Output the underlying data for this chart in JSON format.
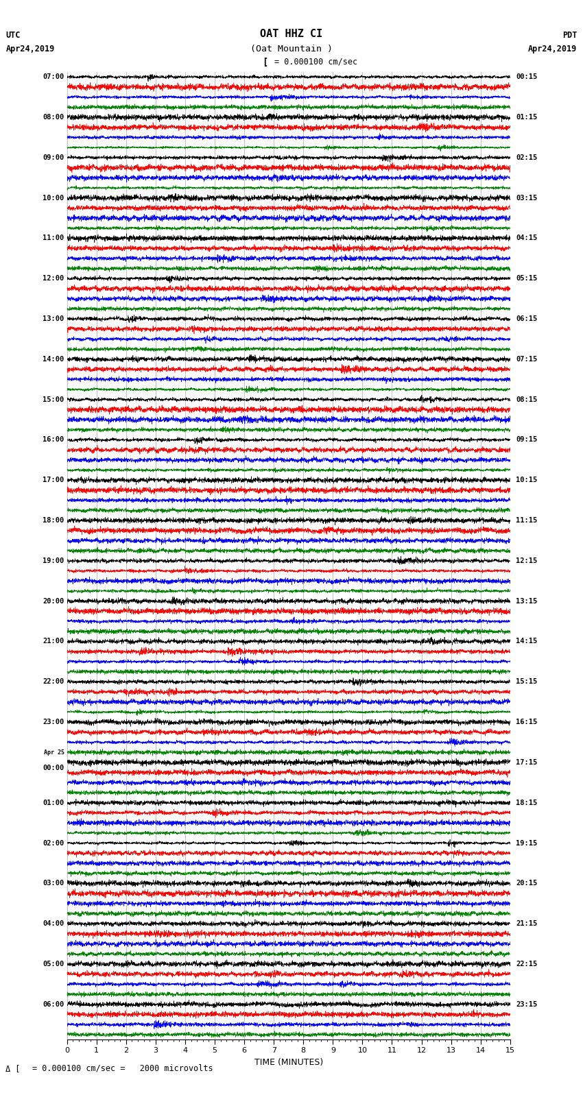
{
  "title_line1": "OAT HHZ CI",
  "title_line2": "(Oat Mountain )",
  "scale_text": "= 0.000100 cm/sec",
  "left_label_top": "UTC",
  "left_label_date": "Apr24,2019",
  "right_label_top": "PDT",
  "right_label_date": "Apr24,2019",
  "bottom_label": "TIME (MINUTES)",
  "footer_text": "= 0.000100 cm/sec =   2000 microvolts",
  "utc_label_list": [
    "07:00",
    "08:00",
    "09:00",
    "10:00",
    "11:00",
    "12:00",
    "13:00",
    "14:00",
    "15:00",
    "16:00",
    "17:00",
    "18:00",
    "19:00",
    "20:00",
    "21:00",
    "22:00",
    "23:00",
    "00:00",
    "01:00",
    "02:00",
    "03:00",
    "04:00",
    "05:00",
    "06:00"
  ],
  "pdt_label_list": [
    "00:15",
    "01:15",
    "02:15",
    "03:15",
    "04:15",
    "05:15",
    "06:15",
    "07:15",
    "08:15",
    "09:15",
    "10:15",
    "11:15",
    "12:15",
    "13:15",
    "14:15",
    "15:15",
    "16:15",
    "17:15",
    "18:15",
    "19:15",
    "20:15",
    "21:15",
    "22:15",
    "23:15"
  ],
  "apr25_group": 16,
  "colors": [
    "black",
    "red",
    "blue",
    "green"
  ],
  "n_groups": 24,
  "traces_per_group": 4,
  "time_min": 0,
  "time_max": 15,
  "figwidth": 8.5,
  "figheight": 16.13,
  "bg_color": "white",
  "amps": [
    0.45,
    0.48,
    0.44,
    0.36
  ],
  "grid_color": "#aaaaaa",
  "n_pts": 3000,
  "lw": 0.45
}
